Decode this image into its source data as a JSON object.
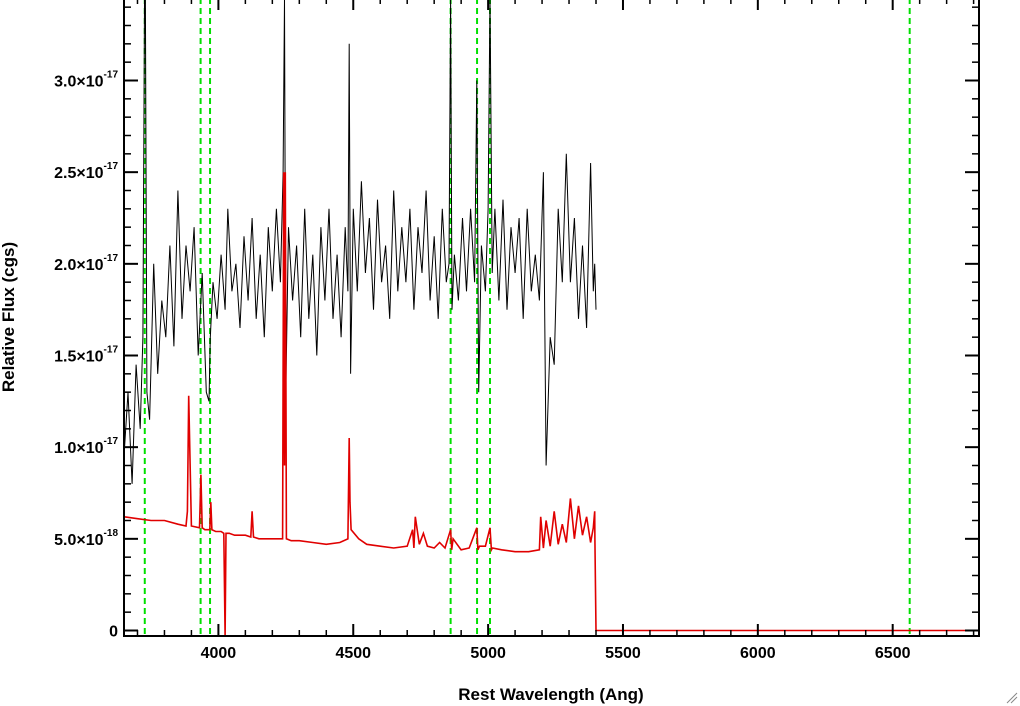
{
  "chart_data": {
    "type": "line",
    "title": "",
    "xlabel": "Rest Wavelength (Ang)",
    "ylabel": "Relative Flux (cgs)",
    "xlim": [
      3650,
      6820
    ],
    "ylim": [
      -3e-19,
      3.45e-17
    ],
    "x_ticks": [
      {
        "value": 4000,
        "label": "4000"
      },
      {
        "value": 4500,
        "label": "4500"
      },
      {
        "value": 5000,
        "label": "5000"
      },
      {
        "value": 5500,
        "label": "5500"
      },
      {
        "value": 6000,
        "label": "6000"
      },
      {
        "value": 6500,
        "label": "6500"
      }
    ],
    "y_ticks": [
      {
        "value": 0,
        "label": "0",
        "mantissa": "",
        "exponent": ""
      },
      {
        "value": 5e-18,
        "label": "5.0×10^-18",
        "mantissa": "5.0×10",
        "exponent": "-18"
      },
      {
        "value": 1e-17,
        "label": "1.0×10^-17",
        "mantissa": "1.0×10",
        "exponent": "-17"
      },
      {
        "value": 1.5e-17,
        "label": "1.5×10^-17",
        "mantissa": "1.5×10",
        "exponent": "-17"
      },
      {
        "value": 2e-17,
        "label": "2.0×10^-17",
        "mantissa": "2.0×10",
        "exponent": "-17"
      },
      {
        "value": 2.5e-17,
        "label": "2.5×10^-17",
        "mantissa": "2.5×10",
        "exponent": "-17"
      },
      {
        "value": 3e-17,
        "label": "3.0×10^-17",
        "mantissa": "3.0×10",
        "exponent": "-17"
      }
    ],
    "grid": false,
    "legend": "none",
    "series": [
      {
        "color": "#000000",
        "x": [
          3650,
          3665,
          3680,
          3695,
          3710,
          3720,
          3728,
          3735,
          3745,
          3760,
          3775,
          3790,
          3805,
          3820,
          3835,
          3850,
          3865,
          3880,
          3895,
          3910,
          3925,
          3940,
          3955,
          3965,
          3970,
          3980,
          3995,
          4010,
          4025,
          4035,
          4050,
          4065,
          4080,
          4095,
          4110,
          4125,
          4140,
          4155,
          4170,
          4185,
          4200,
          4215,
          4230,
          4240,
          4245,
          4250,
          4260,
          4275,
          4290,
          4305,
          4320,
          4335,
          4350,
          4365,
          4380,
          4395,
          4410,
          4425,
          4440,
          4455,
          4470,
          4480,
          4485,
          4490,
          4500,
          4515,
          4530,
          4545,
          4560,
          4575,
          4590,
          4605,
          4620,
          4635,
          4650,
          4665,
          4680,
          4695,
          4710,
          4725,
          4740,
          4755,
          4770,
          4785,
          4800,
          4815,
          4830,
          4845,
          4855,
          4861,
          4866,
          4875,
          4890,
          4905,
          4920,
          4935,
          4950,
          4958,
          4965,
          4975,
          4990,
          5000,
          5007,
          5015,
          5025,
          5040,
          5055,
          5070,
          5085,
          5100,
          5115,
          5130,
          5145,
          5160,
          5175,
          5190,
          5205,
          5215,
          5230,
          5245,
          5260,
          5275,
          5290,
          5305,
          5320,
          5335,
          5350,
          5365,
          5380,
          5390,
          5395,
          5400
        ],
        "y": [
          9.5e-18,
          1.3e-17,
          8e-18,
          1.45e-17,
          1.1e-17,
          1.6e-17,
          4e-17,
          1.3e-17,
          1.15e-17,
          2e-17,
          1.4e-17,
          1.8e-17,
          1.6e-17,
          2.1e-17,
          1.55e-17,
          2.4e-17,
          1.7e-17,
          2.1e-17,
          1.85e-17,
          2.2e-17,
          1.5e-17,
          1.95e-17,
          1.3e-17,
          1.25e-17,
          1.6e-17,
          1.9e-17,
          1.7e-17,
          2.05e-17,
          1.75e-17,
          2.3e-17,
          1.85e-17,
          2e-17,
          1.65e-17,
          2.15e-17,
          1.8e-17,
          2.25e-17,
          1.7e-17,
          2.05e-17,
          1.6e-17,
          2.2e-17,
          1.85e-17,
          2.3e-17,
          1.9e-17,
          2.5e-17,
          3.45e-17,
          1.3e-17,
          2.2e-17,
          1.8e-17,
          2.1e-17,
          1.6e-17,
          2.3e-17,
          1.7e-17,
          2.05e-17,
          1.5e-17,
          2.2e-17,
          1.8e-17,
          2.3e-17,
          1.7e-17,
          2.05e-17,
          1.6e-17,
          2.2e-17,
          1.85e-17,
          3.2e-17,
          1.4e-17,
          2.3e-17,
          1.85e-17,
          2.45e-17,
          1.95e-17,
          2.25e-17,
          1.75e-17,
          2.35e-17,
          1.9e-17,
          2.1e-17,
          1.7e-17,
          2.4e-17,
          1.85e-17,
          2.2e-17,
          1.9e-17,
          2.3e-17,
          1.75e-17,
          2.2e-17,
          1.95e-17,
          2.4e-17,
          1.8e-17,
          2.15e-17,
          1.7e-17,
          2.3e-17,
          1.9e-17,
          2e-17,
          3.45e-17,
          1.75e-17,
          2.05e-17,
          1.8e-17,
          2.25e-17,
          1.85e-17,
          2.3e-17,
          1.9e-17,
          3e-17,
          1.3e-17,
          2.1e-17,
          1.85e-17,
          2.3e-17,
          3.45e-17,
          1.95e-17,
          2.3e-17,
          1.8e-17,
          2.35e-17,
          1.75e-17,
          2.2e-17,
          1.95e-17,
          2.25e-17,
          1.7e-17,
          2.3e-17,
          1.85e-17,
          2.05e-17,
          1.8e-17,
          2.5e-17,
          9e-18,
          1.6e-17,
          1.45e-17,
          2.3e-17,
          1.9e-17,
          2.6e-17,
          1.9e-17,
          2.25e-17,
          1.7e-17,
          2.1e-17,
          1.65e-17,
          2.55e-17,
          1.85e-17,
          2e-17,
          1.75e-17
        ]
      },
      {
        "color": "#e00000",
        "x": [
          3650,
          3700,
          3750,
          3800,
          3850,
          3880,
          3885,
          3890,
          3900,
          3930,
          3935,
          3940,
          3950,
          3968,
          3972,
          3976,
          3990,
          4010,
          4020,
          4025,
          4028,
          4040,
          4060,
          4080,
          4100,
          4120,
          4125,
          4130,
          4150,
          4180,
          4200,
          4220,
          4238,
          4242,
          4245,
          4248,
          4252,
          4270,
          4300,
          4350,
          4400,
          4450,
          4480,
          4485,
          4488,
          4492,
          4520,
          4550,
          4600,
          4650,
          4700,
          4720,
          4725,
          4730,
          4745,
          4760,
          4775,
          4800,
          4820,
          4840,
          4861,
          4865,
          4870,
          4900,
          4930,
          4958,
          4962,
          4968,
          4990,
          5007,
          5012,
          5016,
          5050,
          5100,
          5150,
          5190,
          5195,
          5205,
          5215,
          5230,
          5245,
          5260,
          5275,
          5290,
          5305,
          5320,
          5335,
          5350,
          5365,
          5380,
          5390,
          5395,
          5396,
          5400,
          5500,
          6000,
          6500,
          6820
        ],
        "y": [
          6.2e-18,
          6.1e-18,
          6e-18,
          6e-18,
          5.8e-18,
          5.7e-18,
          6.5e-18,
          1.28e-17,
          5.7e-18,
          5.6e-18,
          8.5e-18,
          5.6e-18,
          5.5e-18,
          5.5e-18,
          7e-18,
          5.5e-18,
          5.4e-18,
          5.4e-18,
          5.3e-18,
          -3e-19,
          5.3e-18,
          5.3e-18,
          5.2e-18,
          5.2e-18,
          5.2e-18,
          5.1e-18,
          6.5e-18,
          5.1e-18,
          5e-18,
          5e-18,
          5e-18,
          5e-18,
          5e-18,
          2.5e-17,
          9e-18,
          2.5e-17,
          5e-18,
          4.9e-18,
          4.9e-18,
          4.8e-18,
          4.7e-18,
          4.8e-18,
          5e-18,
          1.05e-17,
          7e-18,
          5.5e-18,
          5e-18,
          4.7e-18,
          4.6e-18,
          4.5e-18,
          4.6e-18,
          5.5e-18,
          4.5e-18,
          6.2e-18,
          4.7e-18,
          5.3e-18,
          4.6e-18,
          4.5e-18,
          4.8e-18,
          4.5e-18,
          5.5e-18,
          4.4e-18,
          5e-18,
          4.4e-18,
          4.5e-18,
          5.6e-18,
          4.4e-18,
          4.6e-18,
          4.6e-18,
          5.6e-18,
          4.4e-18,
          4.5e-18,
          4.4e-18,
          4.3e-18,
          4.3e-18,
          4.4e-18,
          6.2e-18,
          4.5e-18,
          6e-18,
          4.6e-18,
          6.5e-18,
          4.7e-18,
          5.8e-18,
          4.8e-18,
          7.2e-18,
          5e-18,
          6.8e-18,
          5.2e-18,
          6.2e-18,
          4.8e-18,
          5.6e-18,
          6.5e-18,
          5e-18,
          0.0,
          0.0,
          0.0,
          0.0,
          0.0
        ]
      }
    ],
    "vlines": [
      {
        "x": 3727,
        "color": "#00e000",
        "style": "dashed"
      },
      {
        "x": 3934,
        "color": "#00e000",
        "style": "dashed"
      },
      {
        "x": 3969,
        "color": "#00e000",
        "style": "dashed"
      },
      {
        "x": 4861,
        "color": "#00e000",
        "style": "dashed"
      },
      {
        "x": 4959,
        "color": "#00e000",
        "style": "dashed"
      },
      {
        "x": 5007,
        "color": "#00e000",
        "style": "dashed"
      },
      {
        "x": 6563,
        "color": "#00e000",
        "style": "dashed"
      }
    ]
  }
}
